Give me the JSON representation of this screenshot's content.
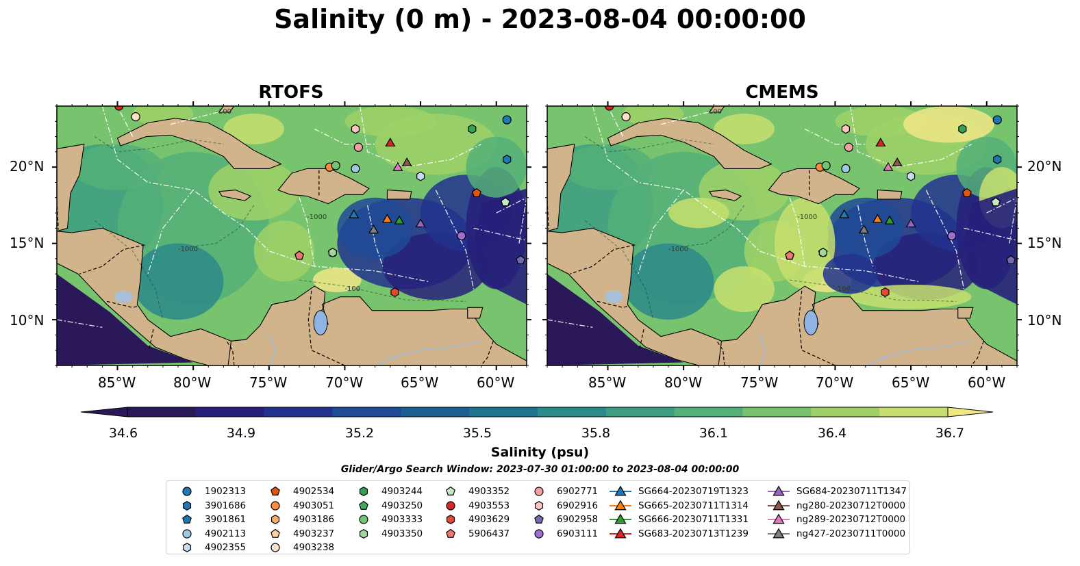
{
  "title": "Salinity (0 m) - 2023-08-04 00:00:00",
  "panels": [
    {
      "title": "RTOFS"
    },
    {
      "title": "CMEMS"
    }
  ],
  "map": {
    "lon_range": [
      -89,
      -58
    ],
    "lat_range": [
      7,
      24
    ],
    "lon_ticks": [
      "85°W",
      "80°W",
      "75°W",
      "70°W",
      "65°W",
      "60°W"
    ],
    "lat_ticks": [
      "10°N",
      "15°N",
      "20°N"
    ],
    "land_color": "#d2b48c",
    "contour_labels": [
      "-100",
      "-1000",
      "-1000",
      "-100"
    ]
  },
  "colorbar": {
    "label": "Salinity (psu)",
    "ticks": [
      "34.6",
      "34.9",
      "35.2",
      "35.5",
      "35.8",
      "36.1",
      "36.4",
      "36.7"
    ],
    "range": [
      34.6,
      36.7
    ],
    "colors": [
      "#2a1858",
      "#26207a",
      "#22328e",
      "#1e4a96",
      "#1a6090",
      "#1f7590",
      "#2b8a8a",
      "#3d9d82",
      "#55b078",
      "#78c36e",
      "#9fd168",
      "#c7df70",
      "#f0e886"
    ]
  },
  "search_window": "Glider/Argo Search Window: 2023-07-30 01:00:00 to 2023-08-04 00:00:00",
  "legend": [
    {
      "label": "1902313",
      "marker": "circle",
      "color": "#1f77b4"
    },
    {
      "label": "3901686",
      "marker": "hexagon",
      "color": "#1f77b4"
    },
    {
      "label": "3901861",
      "marker": "pentagon",
      "color": "#1f77b4"
    },
    {
      "label": "4902113",
      "marker": "circle",
      "color": "#9ecae1"
    },
    {
      "label": "4902355",
      "marker": "hexagon",
      "color": "#c6dbef"
    },
    {
      "label": "4902534",
      "marker": "pentagon",
      "color": "#e6550d"
    },
    {
      "label": "4903051",
      "marker": "circle",
      "color": "#fd8d3c"
    },
    {
      "label": "4903186",
      "marker": "hexagon",
      "color": "#fdae6b"
    },
    {
      "label": "4903237",
      "marker": "pentagon",
      "color": "#fdd0a2"
    },
    {
      "label": "4903238",
      "marker": "circle",
      "color": "#fde0c5"
    },
    {
      "label": "4903244",
      "marker": "hexagon",
      "color": "#31a354"
    },
    {
      "label": "4903250",
      "marker": "pentagon",
      "color": "#41ab5d"
    },
    {
      "label": "4903333",
      "marker": "circle",
      "color": "#74c476"
    },
    {
      "label": "4903350",
      "marker": "hexagon",
      "color": "#a1d99b"
    },
    {
      "label": "4903352",
      "marker": "pentagon",
      "color": "#c7e9c0"
    },
    {
      "label": "4903553",
      "marker": "circle",
      "color": "#d62728"
    },
    {
      "label": "4903629",
      "marker": "hexagon",
      "color": "#e34a33"
    },
    {
      "label": "5906437",
      "marker": "pentagon",
      "color": "#f0776f"
    },
    {
      "label": "6902771",
      "marker": "circle",
      "color": "#f4a0a0"
    },
    {
      "label": "6902916",
      "marker": "hexagon",
      "color": "#fcc5c0"
    },
    {
      "label": "6902958",
      "marker": "pentagon",
      "color": "#756bb1"
    },
    {
      "label": "6903111",
      "marker": "circle",
      "color": "#9e6fce"
    },
    {
      "label": "SG664-20230719T1323",
      "marker": "triangle-line",
      "color": "#1f77b4"
    },
    {
      "label": "SG665-20230711T1314",
      "marker": "triangle-line",
      "color": "#ff7f0e"
    },
    {
      "label": "SG666-20230711T1331",
      "marker": "triangle-line",
      "color": "#2ca02c"
    },
    {
      "label": "SG683-20230713T1239",
      "marker": "triangle-line",
      "color": "#d62728"
    },
    {
      "label": "SG684-20230711T1347",
      "marker": "triangle-line",
      "color": "#9467bd"
    },
    {
      "label": "ng280-20230712T0000",
      "marker": "triangle-line",
      "color": "#8c564b"
    },
    {
      "label": "ng289-20230712T0000",
      "marker": "triangle-line",
      "color": "#e377c2"
    },
    {
      "label": "ng427-20230711T0000",
      "marker": "triangle-line",
      "color": "#7f7f7f"
    }
  ],
  "observations": [
    {
      "label": "1902313",
      "lon": -59.3,
      "lat": 23.1
    },
    {
      "label": "3901686",
      "lon": -59.3,
      "lat": 20.5
    },
    {
      "label": "3901861",
      "lon": -59.4,
      "lat": 17.7
    },
    {
      "label": "4902113",
      "lon": -69.3,
      "lat": 19.9
    },
    {
      "label": "4902355",
      "lon": -65.0,
      "lat": 19.4
    },
    {
      "label": "4902534",
      "lon": -61.3,
      "lat": 18.3
    },
    {
      "label": "4903051",
      "lon": -71.0,
      "lat": 20.0
    },
    {
      "label": "4903186",
      "lon": -69.3,
      "lat": 22.5
    },
    {
      "label": "4903237",
      "lon": -73.0,
      "lat": 14.2
    },
    {
      "label": "4903238",
      "lon": -83.8,
      "lat": 23.3
    },
    {
      "label": "4903244",
      "lon": -61.6,
      "lat": 22.5
    },
    {
      "label": "4903250",
      "lon": -70.8,
      "lat": 14.4
    },
    {
      "label": "4903333",
      "lon": -70.6,
      "lat": 20.1
    },
    {
      "label": "4903350",
      "lon": -70.8,
      "lat": 14.4
    },
    {
      "label": "4903352",
      "lon": -59.4,
      "lat": 17.7
    },
    {
      "label": "4903553",
      "lon": -84.9,
      "lat": 24.0
    },
    {
      "label": "4903629",
      "lon": -66.7,
      "lat": 11.8
    },
    {
      "label": "5906437",
      "lon": -73.0,
      "lat": 14.2
    },
    {
      "label": "6902771",
      "lon": -69.1,
      "lat": 21.3
    },
    {
      "label": "6902916",
      "lon": -69.3,
      "lat": 22.5
    },
    {
      "label": "6902958",
      "lon": -58.4,
      "lat": 13.9
    },
    {
      "label": "6903111",
      "lon": -62.3,
      "lat": 15.5
    },
    {
      "label": "SG664-20230719T1323",
      "lon": -69.4,
      "lat": 16.9
    },
    {
      "label": "SG665-20230711T1314",
      "lon": -67.2,
      "lat": 16.6
    },
    {
      "label": "SG666-20230711T1331",
      "lon": -66.4,
      "lat": 16.5
    },
    {
      "label": "SG683-20230713T1239",
      "lon": -67.0,
      "lat": 21.6
    },
    {
      "label": "SG684-20230711T1347",
      "lon": -65.0,
      "lat": 16.3
    },
    {
      "label": "ng280-20230712T0000",
      "lon": -65.9,
      "lat": 20.3
    },
    {
      "label": "ng289-20230712T0000",
      "lon": -66.5,
      "lat": 20.0
    },
    {
      "label": "ng427-20230711T0000",
      "lon": -68.1,
      "lat": 15.9
    }
  ]
}
